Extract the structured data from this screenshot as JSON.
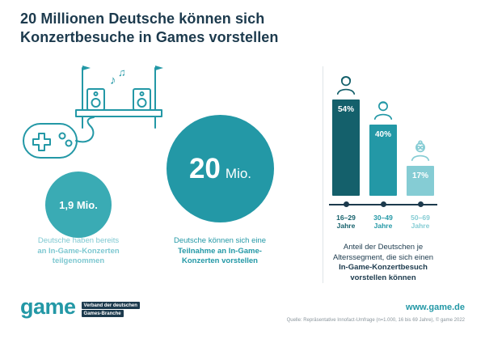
{
  "title": {
    "line1": "20 Millionen Deutsche können sich",
    "line2": "Konzertbesuche in Games vorstellen"
  },
  "colors": {
    "navy": "#1c3a4d",
    "teal": "#2398a6",
    "teal_small_circle": "#3aabb4",
    "teal_dark": "#14606b",
    "teal_light": "#85ccd4",
    "caption_light": "#7ec8d1",
    "separator": "#dfe5e8",
    "source_gray": "#8a959c"
  },
  "left": {
    "circle_value": "1,9 Mio.",
    "caption": {
      "line1": "Deutsche haben bereits",
      "line2": "an In-Game-Konzerten",
      "line3": "teilgenommen"
    }
  },
  "center": {
    "circle_number": "20",
    "circle_unit": "Mio.",
    "caption": {
      "line1": "Deutsche können sich eine",
      "line2": "Teilnahme an In-Game-",
      "line3": "Konzerten vorstellen"
    }
  },
  "chart": {
    "bars": [
      {
        "pct": "54%",
        "range": "16–29",
        "unit": "Jahre",
        "value": 54,
        "color": "#14606b"
      },
      {
        "pct": "40%",
        "range": "30–49",
        "unit": "Jahre",
        "value": 40,
        "color": "#2398a6"
      },
      {
        "pct": "17%",
        "range": "50–69",
        "unit": "Jahre",
        "value": 17,
        "color": "#85ccd4"
      }
    ],
    "caption": {
      "line1": "Anteil der Deutschen je",
      "line2": "Alterssegment, die sich einen",
      "line3": "In-Game-Konzertbesuch",
      "line4": "vorstellen können"
    }
  },
  "chart_data": [
    {
      "type": "bar",
      "categories": [
        "16–29 Jahre",
        "30–49 Jahre",
        "50–69 Jahre"
      ],
      "values": [
        54,
        40,
        17
      ],
      "value_labels": [
        "54%",
        "40%",
        "17%"
      ],
      "title": "Anteil der Deutschen je Alterssegment, die sich einen In-Game-Konzertbesuch vorstellen können",
      "xlabel": "",
      "ylabel": "",
      "ylim": [
        0,
        60
      ],
      "legend": false,
      "grid": false,
      "bar_colors": [
        "#14606b",
        "#2398a6",
        "#85ccd4"
      ]
    },
    {
      "type": "other",
      "description": "Proportional circles, millions of Germans",
      "items": [
        {
          "label": "Deutsche haben bereits an In-Game-Konzerten teilgenommen",
          "value_millions": 1.9,
          "display": "1,9 Mio."
        },
        {
          "label": "Deutsche können sich eine Teilnahme an In-Game-Konzerten vorstellen",
          "value_millions": 20,
          "display": "20 Mio."
        }
      ]
    }
  ],
  "footer": {
    "logo_text": "game",
    "logo_badge_line1": "Verband der deutschen",
    "logo_badge_line2": "Games-Branche",
    "website": "www.game.de",
    "source": "Quelle: Repräsentative Innofact-Umfrage (n=1.000, 16 bis 69 Jahre), © game 2022"
  }
}
